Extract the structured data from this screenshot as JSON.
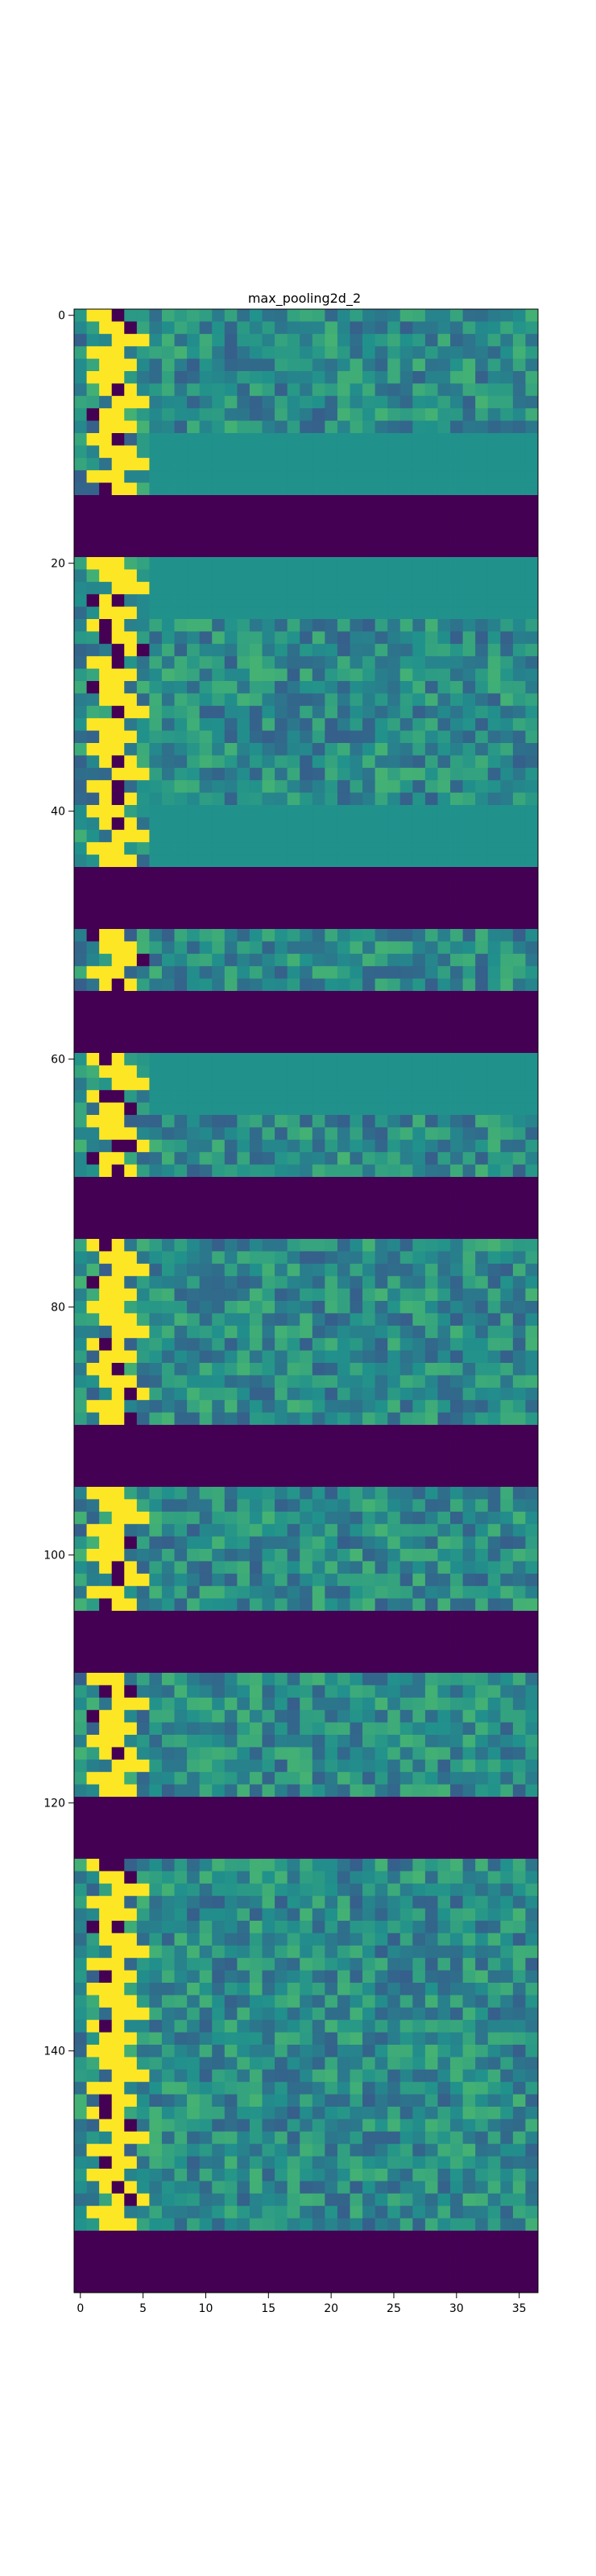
{
  "chart_data": {
    "type": "heatmap",
    "title": "max_pooling2d_2",
    "xlabel": "",
    "ylabel": "",
    "n_rows": 160,
    "n_cols": 37,
    "xlim": [
      -0.5,
      36.5
    ],
    "ylim": [
      159.5,
      -0.5
    ],
    "x_ticks": [
      0,
      5,
      10,
      15,
      20,
      25,
      30,
      35
    ],
    "y_ticks": [
      0,
      20,
      40,
      60,
      80,
      100,
      120,
      140
    ],
    "colormap": "viridis",
    "grid": false,
    "blank_row_ranges": [
      [
        15,
        19
      ],
      [
        45,
        49
      ],
      [
        55,
        59
      ],
      [
        70,
        74
      ],
      [
        90,
        94
      ],
      [
        105,
        109
      ],
      [
        120,
        124
      ],
      [
        155,
        159
      ]
    ],
    "flat_row_ranges": [
      [
        10,
        14
      ],
      [
        20,
        24
      ],
      [
        40,
        44
      ],
      [
        60,
        64
      ]
    ],
    "bright_band": {
      "description": "high-activation diagonal in columns 1-7",
      "value": 1.0
    }
  },
  "colors": {
    "background": "#ffffff",
    "viridis_low": "#440154",
    "viridis_mid": "#21918c",
    "viridis_high": "#fde725"
  }
}
